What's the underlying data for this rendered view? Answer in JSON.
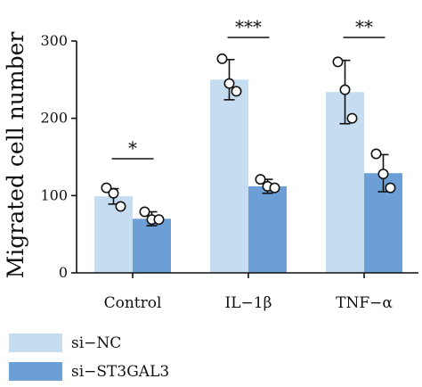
{
  "chart_data": {
    "type": "bar",
    "title": "",
    "xlabel": "",
    "ylabel": "Migrated cell number",
    "ylim": [
      0,
      300
    ],
    "yticks": [
      0,
      100,
      200,
      300
    ],
    "categories": [
      "Control",
      "IL−1β",
      "TNF−α"
    ],
    "legend_position": "bottom-left",
    "grid": false,
    "series": [
      {
        "name": "si−NC",
        "color": "#c5dcf1",
        "values": [
          99,
          250,
          234
        ],
        "errors": [
          10,
          26,
          41
        ],
        "points": [
          [
            110,
            103,
            86
          ],
          [
            277,
            245,
            235
          ],
          [
            273,
            237,
            200
          ]
        ]
      },
      {
        "name": "si−ST3GAL3",
        "color": "#6c9fd6",
        "values": [
          70,
          112,
          129
        ],
        "errors": [
          9,
          9,
          24
        ],
        "points": [
          [
            79,
            69,
            69
          ],
          [
            121,
            112,
            110
          ],
          [
            154,
            128,
            110
          ]
        ]
      }
    ],
    "significance": [
      "*",
      "***",
      "**"
    ]
  }
}
